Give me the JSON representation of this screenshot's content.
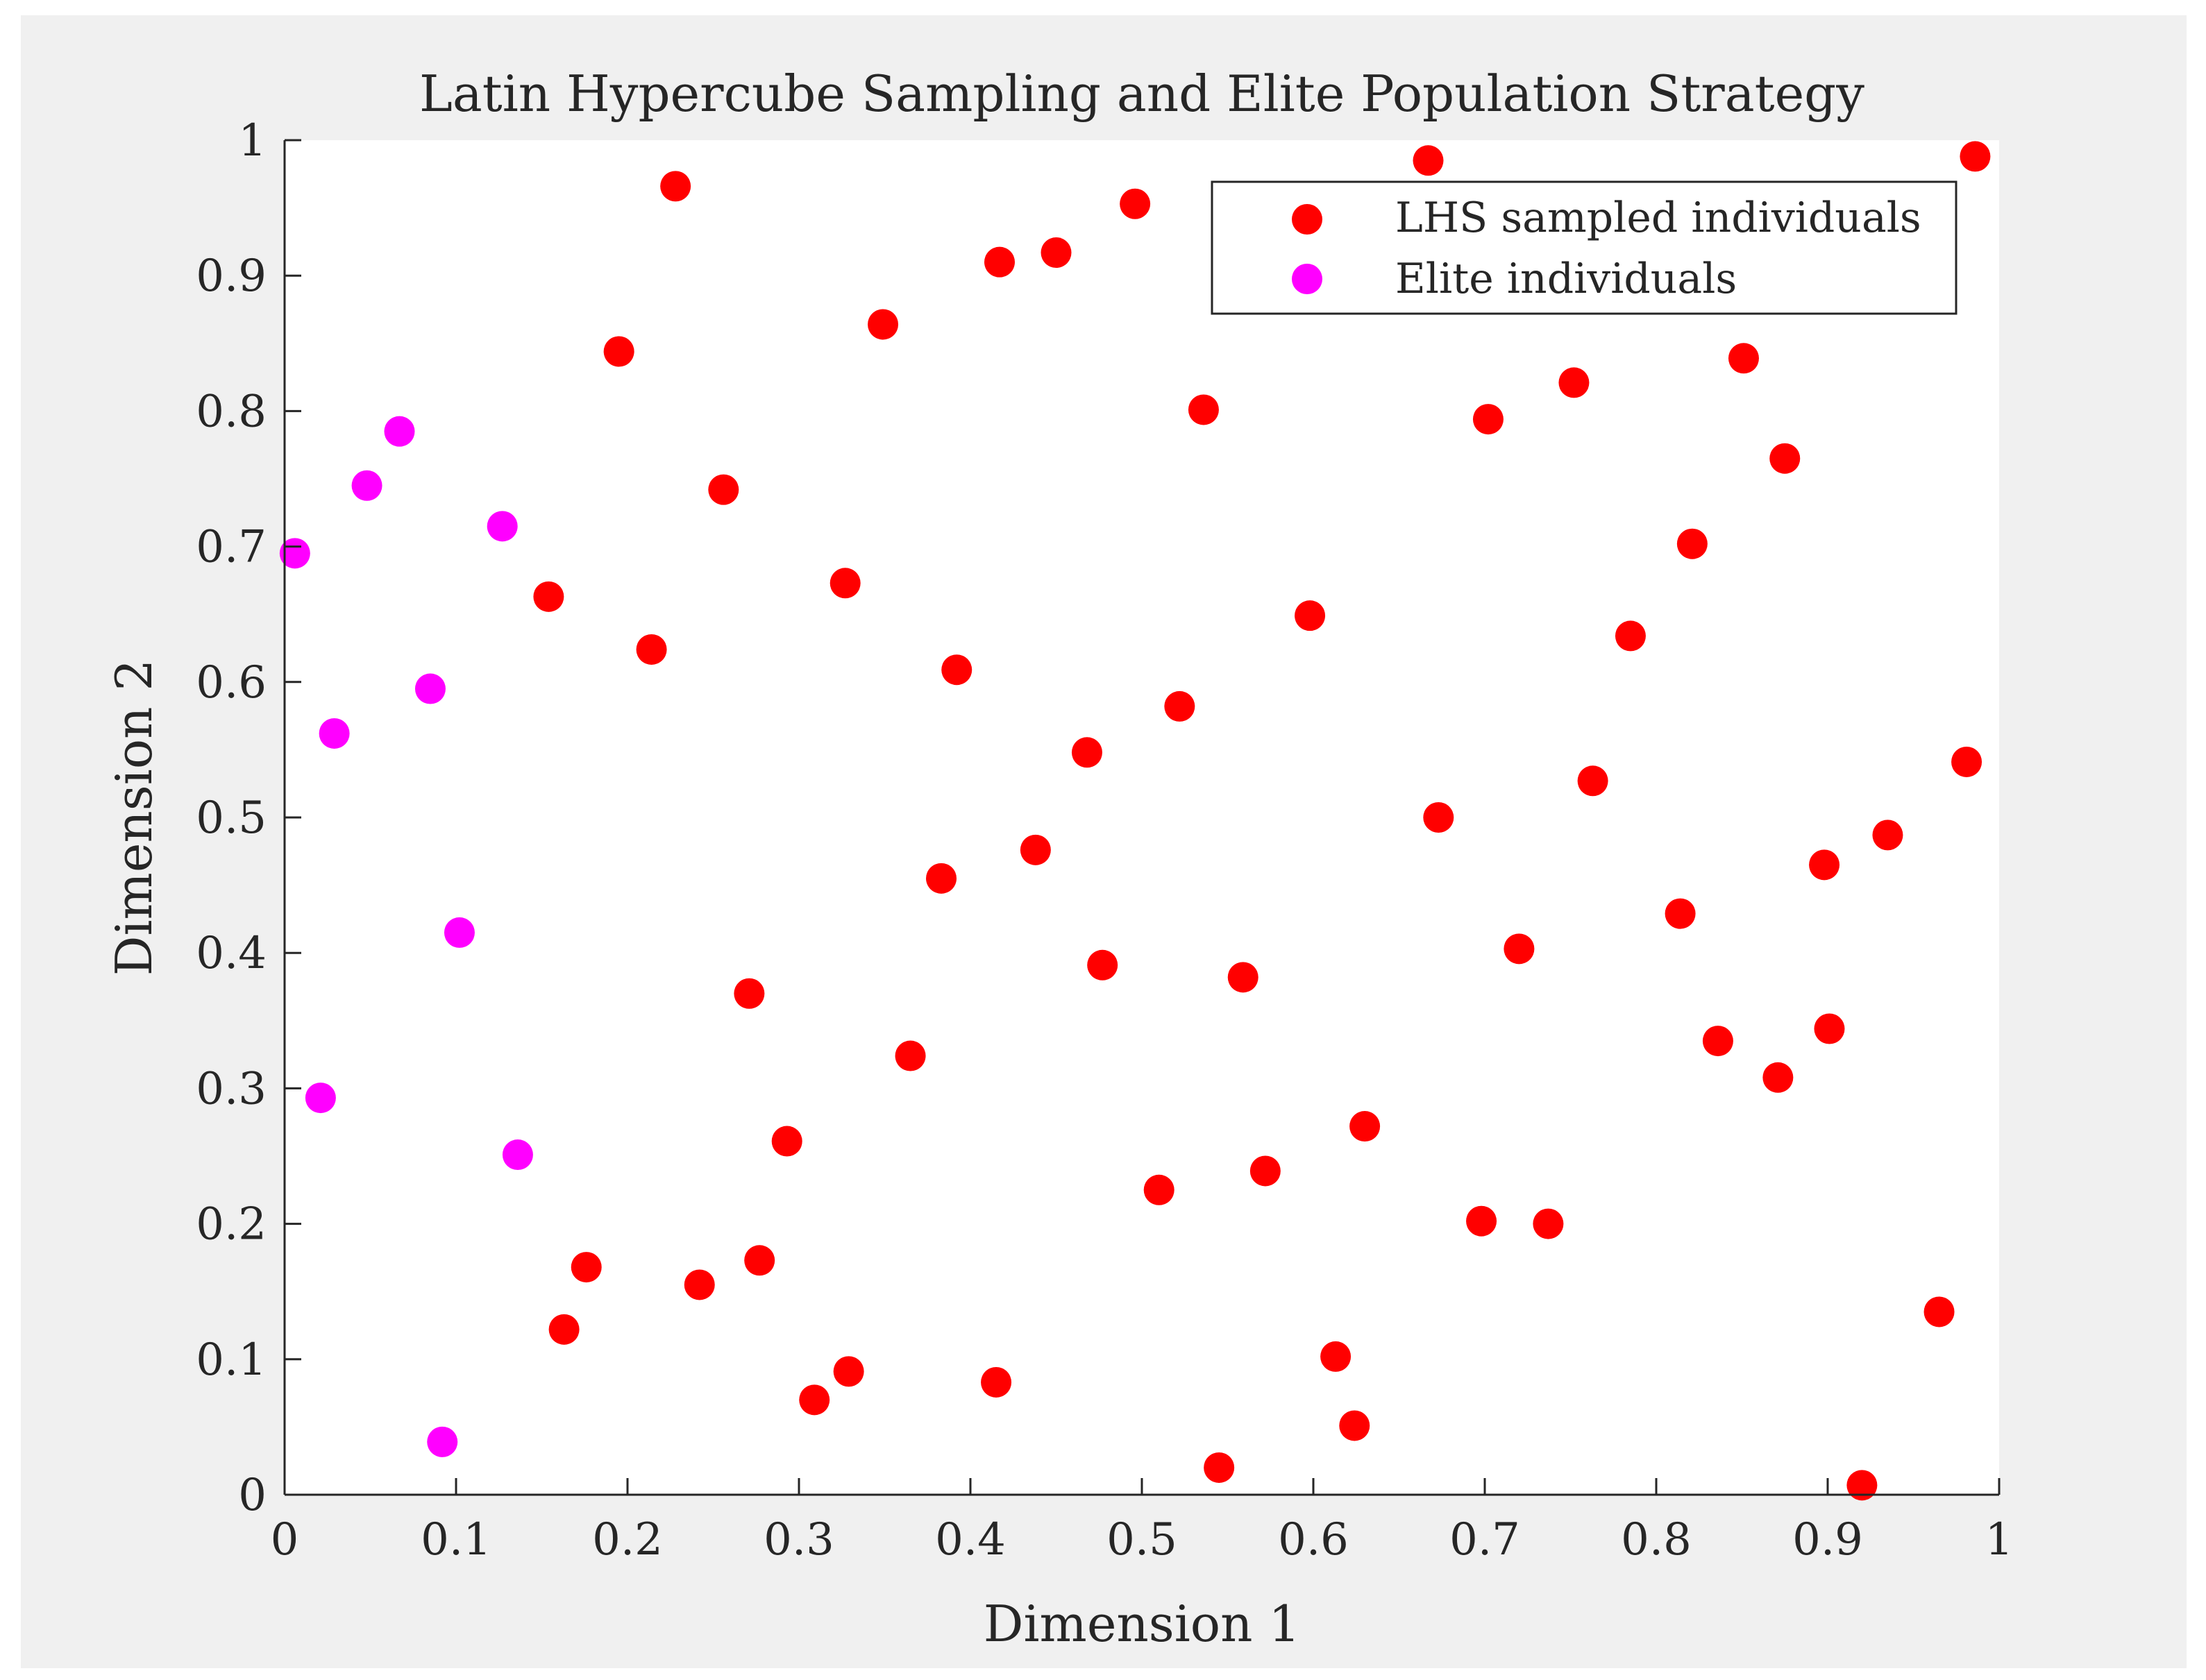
{
  "chart_data": {
    "type": "scatter",
    "title": "Latin Hypercube Sampling and Elite Population Strategy",
    "xlabel": "Dimension 1",
    "ylabel": "Dimension 2",
    "xlim": [
      0,
      1
    ],
    "ylim": [
      0,
      1
    ],
    "xticks": [
      "0",
      "0.1",
      "0.2",
      "0.3",
      "0.4",
      "0.5",
      "0.6",
      "0.7",
      "0.8",
      "0.9",
      "1"
    ],
    "yticks": [
      "0",
      "0.1",
      "0.2",
      "0.3",
      "0.4",
      "0.5",
      "0.6",
      "0.7",
      "0.8",
      "0.9",
      "1"
    ],
    "grid": false,
    "legend_position": "top-right",
    "series": [
      {
        "name": "LHS sampled individuals",
        "color": "#ff0000",
        "points": [
          [
            0.228,
            0.966
          ],
          [
            0.195,
            0.844
          ],
          [
            0.256,
            0.742
          ],
          [
            0.154,
            0.663
          ],
          [
            0.214,
            0.624
          ],
          [
            0.349,
            0.864
          ],
          [
            0.327,
            0.673
          ],
          [
            0.392,
            0.609
          ],
          [
            0.417,
            0.91
          ],
          [
            0.45,
            0.917
          ],
          [
            0.496,
            0.953
          ],
          [
            0.536,
            0.801
          ],
          [
            0.522,
            0.582
          ],
          [
            0.468,
            0.548
          ],
          [
            0.438,
            0.476
          ],
          [
            0.383,
            0.455
          ],
          [
            0.477,
            0.391
          ],
          [
            0.559,
            0.382
          ],
          [
            0.271,
            0.37
          ],
          [
            0.365,
            0.324
          ],
          [
            0.293,
            0.261
          ],
          [
            0.176,
            0.168
          ],
          [
            0.163,
            0.122
          ],
          [
            0.242,
            0.155
          ],
          [
            0.277,
            0.173
          ],
          [
            0.309,
            0.07
          ],
          [
            0.329,
            0.091
          ],
          [
            0.415,
            0.083
          ],
          [
            0.51,
            0.225
          ],
          [
            0.572,
            0.239
          ],
          [
            0.63,
            0.272
          ],
          [
            0.613,
            0.102
          ],
          [
            0.624,
            0.051
          ],
          [
            0.545,
            0.02
          ],
          [
            0.598,
            0.649
          ],
          [
            0.667,
            0.985
          ],
          [
            0.702,
            0.794
          ],
          [
            0.752,
            0.821
          ],
          [
            0.673,
            0.5
          ],
          [
            0.72,
            0.403
          ],
          [
            0.698,
            0.202
          ],
          [
            0.737,
            0.2
          ],
          [
            0.763,
            0.527
          ],
          [
            0.785,
            0.634
          ],
          [
            0.821,
            0.702
          ],
          [
            0.851,
            0.839
          ],
          [
            0.875,
            0.765
          ],
          [
            0.814,
            0.429
          ],
          [
            0.836,
            0.335
          ],
          [
            0.871,
            0.308
          ],
          [
            0.898,
            0.465
          ],
          [
            0.901,
            0.344
          ],
          [
            0.935,
            0.487
          ],
          [
            0.92,
            0.007
          ],
          [
            0.965,
            0.135
          ],
          [
            0.981,
            0.541
          ],
          [
            0.986,
            0.988
          ]
        ]
      },
      {
        "name": "Elite individuals",
        "color": "#ff00ff",
        "points": [
          [
            0.006,
            0.695
          ],
          [
            0.048,
            0.745
          ],
          [
            0.067,
            0.785
          ],
          [
            0.127,
            0.715
          ],
          [
            0.085,
            0.595
          ],
          [
            0.029,
            0.562
          ],
          [
            0.102,
            0.415
          ],
          [
            0.021,
            0.293
          ],
          [
            0.136,
            0.251
          ],
          [
            0.092,
            0.039
          ]
        ]
      }
    ]
  }
}
